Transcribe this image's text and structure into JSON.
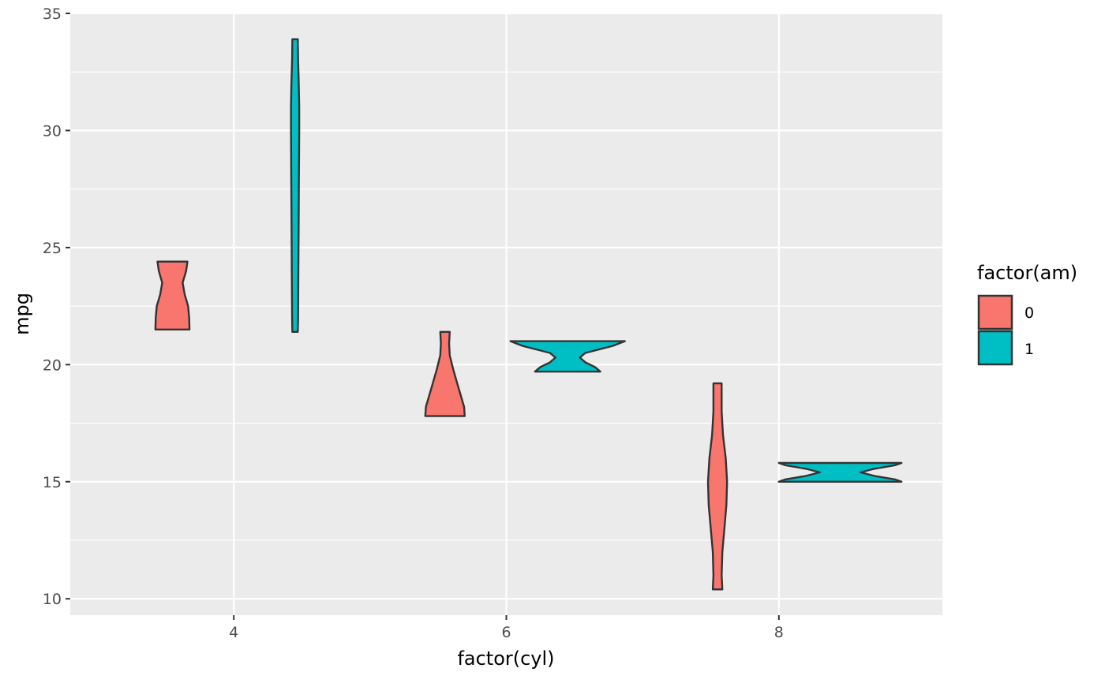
{
  "chart_data": {
    "type": "violin",
    "title": "",
    "xlabel": "factor(cyl)",
    "ylabel": "mpg",
    "x_ticks": [
      "4",
      "6",
      "8"
    ],
    "x_tick_values": [
      4,
      6,
      8
    ],
    "y_ticks": [
      "10",
      "15",
      "20",
      "25",
      "30",
      "35"
    ],
    "y_tick_values": [
      10,
      15,
      20,
      25,
      30,
      35
    ],
    "xlim": [
      2.8,
      9.2
    ],
    "ylim": [
      9.3,
      35.0
    ],
    "grid": true,
    "legend": {
      "title": "factor(am)",
      "position": "right",
      "entries": [
        {
          "label": "0",
          "color": "#F8766D"
        },
        {
          "label": "1",
          "color": "#00BFC4"
        }
      ]
    },
    "series": [
      {
        "name": "0",
        "color": "#F8766D",
        "violins": [
          {
            "category": "4",
            "center_x": 3.55,
            "min": 21.5,
            "max": 24.4,
            "profile": [
              [
                21.5,
                0.125
              ],
              [
                22.0,
                0.123
              ],
              [
                22.5,
                0.115
              ],
              [
                23.0,
                0.09
              ],
              [
                23.5,
                0.075
              ],
              [
                24.0,
                0.1
              ],
              [
                24.4,
                0.11
              ]
            ]
          },
          {
            "category": "6",
            "center_x": 5.55,
            "min": 17.8,
            "max": 21.4,
            "profile": [
              [
                17.8,
                0.145
              ],
              [
                18.2,
                0.14
              ],
              [
                18.6,
                0.12
              ],
              [
                19.2,
                0.09
              ],
              [
                19.8,
                0.06
              ],
              [
                20.4,
                0.035
              ],
              [
                20.9,
                0.03
              ],
              [
                21.4,
                0.035
              ]
            ]
          },
          {
            "category": "8",
            "center_x": 7.55,
            "min": 10.4,
            "max": 19.2,
            "profile": [
              [
                10.4,
                0.035
              ],
              [
                11.0,
                0.03
              ],
              [
                12.0,
                0.035
              ],
              [
                13.0,
                0.05
              ],
              [
                14.0,
                0.065
              ],
              [
                15.0,
                0.07
              ],
              [
                16.0,
                0.06
              ],
              [
                17.0,
                0.04
              ],
              [
                18.0,
                0.03
              ],
              [
                19.2,
                0.03
              ]
            ]
          }
        ]
      },
      {
        "name": "1",
        "color": "#00BFC4",
        "violins": [
          {
            "category": "4",
            "center_x": 4.45,
            "min": 21.4,
            "max": 33.9,
            "profile": [
              [
                21.4,
                0.02
              ],
              [
                22.0,
                0.022
              ],
              [
                24.0,
                0.024
              ],
              [
                26.0,
                0.026
              ],
              [
                28.0,
                0.028
              ],
              [
                30.0,
                0.03
              ],
              [
                31.0,
                0.03
              ],
              [
                32.0,
                0.027
              ],
              [
                33.0,
                0.022
              ],
              [
                33.9,
                0.02
              ]
            ]
          },
          {
            "category": "6",
            "center_x": 6.45,
            "min": 19.7,
            "max": 21.0,
            "profile": [
              [
                19.7,
                0.24
              ],
              [
                19.9,
                0.2
              ],
              [
                20.1,
                0.13
              ],
              [
                20.3,
                0.09
              ],
              [
                20.5,
                0.13
              ],
              [
                20.8,
                0.33
              ],
              [
                21.0,
                0.42
              ]
            ]
          },
          {
            "category": "8",
            "center_x": 8.45,
            "min": 15.0,
            "max": 15.8,
            "profile": [
              [
                15.0,
                0.45
              ],
              [
                15.1,
                0.4
              ],
              [
                15.25,
                0.25
              ],
              [
                15.4,
                0.15
              ],
              [
                15.55,
                0.25
              ],
              [
                15.7,
                0.4
              ],
              [
                15.8,
                0.45
              ]
            ]
          }
        ]
      }
    ]
  }
}
